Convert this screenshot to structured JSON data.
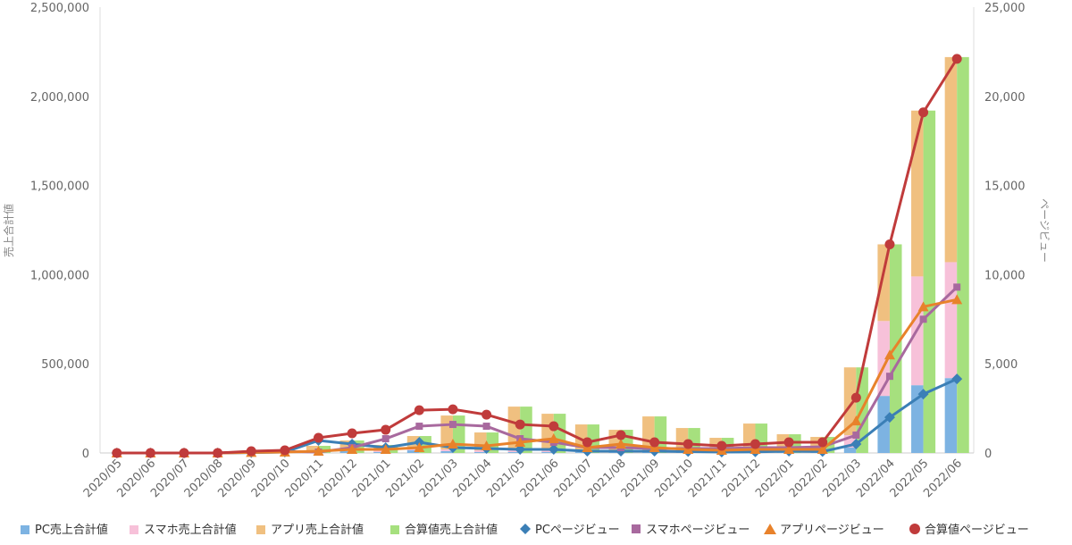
{
  "chart_data": {
    "type": "bar",
    "title": "",
    "categories": [
      "2020/05",
      "2020/06",
      "2020/07",
      "2020/08",
      "2020/09",
      "2020/10",
      "2020/11",
      "2020/12",
      "2021/01",
      "2021/02",
      "2021/03",
      "2021/04",
      "2021/05",
      "2021/06",
      "2021/07",
      "2021/08",
      "2021/09",
      "2021/10",
      "2021/11",
      "2021/12",
      "2022/01",
      "2022/02",
      "2022/03",
      "2022/04",
      "2022/05",
      "2022/06"
    ],
    "y_left": {
      "label": "売上合計値",
      "min": 0,
      "max": 2500000,
      "ticks": [
        "0",
        "500,000",
        "1,000,000",
        "1,500,000",
        "2,000,000",
        "2,500,000"
      ]
    },
    "y_right": {
      "label": "ページビュー",
      "min": 0,
      "max": 25000,
      "ticks": [
        "0",
        "5,000",
        "10,000",
        "15,000",
        "20,000",
        "25,000"
      ]
    },
    "grid": false,
    "legend_position": "bottom",
    "bar_series": [
      {
        "name": "PC売上合計値",
        "color": "#7db3e2",
        "values": [
          0,
          0,
          0,
          0,
          0,
          0,
          5000,
          10000,
          5000,
          15000,
          10000,
          5000,
          5000,
          5000,
          5000,
          5000,
          5000,
          5000,
          5000,
          5000,
          5000,
          5000,
          30000,
          320000,
          380000,
          420000
        ]
      },
      {
        "name": "スマホ売上合計値",
        "color": "#f7c1d9",
        "values": [
          0,
          0,
          0,
          0,
          0,
          0,
          5000,
          10000,
          10000,
          20000,
          10000,
          10000,
          10000,
          10000,
          10000,
          10000,
          10000,
          10000,
          10000,
          10000,
          10000,
          10000,
          70000,
          420000,
          610000,
          650000
        ]
      },
      {
        "name": "アプリ売上合計値",
        "color": "#f0c080",
        "values": [
          0,
          0,
          0,
          0,
          5000,
          10000,
          30000,
          50000,
          30000,
          60000,
          190000,
          100000,
          245000,
          205000,
          145000,
          115000,
          190000,
          125000,
          70000,
          150000,
          90000,
          75000,
          380000,
          430000,
          930000,
          1150000
        ]
      },
      {
        "name": "合算値売上合計値",
        "color": "#a6e07e",
        "values": [
          0,
          0,
          0,
          0,
          5000,
          10000,
          40000,
          70000,
          45000,
          95000,
          210000,
          115000,
          260000,
          220000,
          160000,
          130000,
          205000,
          140000,
          85000,
          165000,
          105000,
          90000,
          480000,
          1170000,
          1920000,
          2220000
        ]
      }
    ],
    "line_series": [
      {
        "name": "PCページビュー",
        "color": "#3b7fb6",
        "marker": "diamond",
        "values": [
          0,
          0,
          0,
          0,
          20,
          50,
          700,
          500,
          300,
          600,
          300,
          250,
          200,
          200,
          100,
          100,
          100,
          80,
          50,
          60,
          100,
          80,
          500,
          2000,
          3300,
          4150
        ]
      },
      {
        "name": "スマホページビュー",
        "color": "#a8699e",
        "marker": "square",
        "values": [
          0,
          0,
          0,
          0,
          50,
          80,
          50,
          300,
          800,
          1500,
          1600,
          1500,
          800,
          600,
          300,
          300,
          250,
          250,
          250,
          300,
          300,
          350,
          1000,
          4300,
          7500,
          9300
        ]
      },
      {
        "name": "アプリページビュー",
        "color": "#e8822b",
        "marker": "triangle",
        "values": [
          0,
          0,
          0,
          0,
          30,
          50,
          100,
          200,
          200,
          300,
          500,
          400,
          600,
          800,
          300,
          500,
          300,
          200,
          150,
          200,
          200,
          200,
          1800,
          5500,
          8200,
          8600
        ]
      },
      {
        "name": "合算値ページビュー",
        "color": "#c03b3b",
        "marker": "circle",
        "values": [
          0,
          0,
          0,
          0,
          100,
          150,
          850,
          1100,
          1300,
          2400,
          2450,
          2150,
          1600,
          1500,
          600,
          1000,
          600,
          500,
          400,
          500,
          600,
          600,
          3100,
          11700,
          19100,
          22100
        ]
      }
    ]
  }
}
